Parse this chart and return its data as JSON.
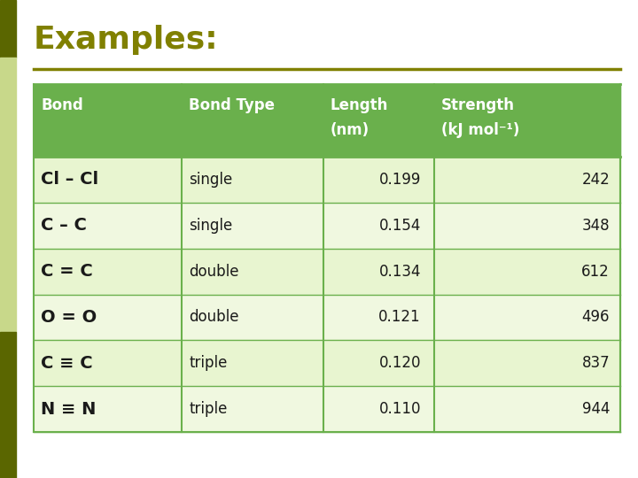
{
  "title": "Examples:",
  "title_color": "#808000",
  "title_fontsize": 26,
  "background_color": "#ffffff",
  "header_bg_color": "#6ab04c",
  "header_text_color": "#ffffff",
  "row_bg_even": "#e8f5d0",
  "row_bg_odd": "#f0f8e0",
  "header_line1": [
    "Bond",
    "Bond Type",
    "Length",
    "Strength"
  ],
  "header_line2": [
    "",
    "",
    "(nm)",
    "(kJ mol⁻¹)"
  ],
  "bonds": [
    "Cl – Cl",
    "C – C",
    "C = C",
    "O = O",
    "C ≡ C",
    "N ≡ N"
  ],
  "bond_types": [
    "single",
    "single",
    "double",
    "double",
    "triple",
    "triple"
  ],
  "lengths": [
    "0.199",
    "0.154",
    "0.134",
    "0.121",
    "0.120",
    "0.110"
  ],
  "strengths": [
    "242",
    "348",
    "612",
    "496",
    "837",
    "944"
  ],
  "separator_color": "#6ab04c",
  "title_underline_color": "#808000",
  "left_bar_color1": "#5a6600",
  "left_bar_color2": "#c8d88a",
  "left_bar_color3": "#5a6600"
}
